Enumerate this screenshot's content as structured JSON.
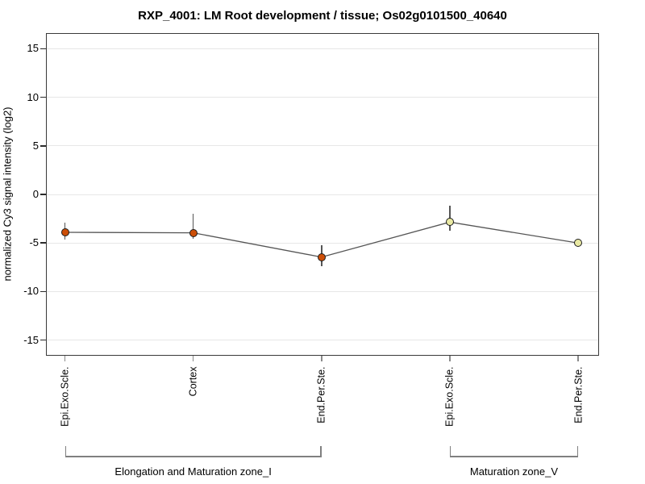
{
  "chart_data": {
    "type": "line",
    "title": "RXP_4001: LM Root development / tissue; Os02g0101500_40640",
    "xlabel": "",
    "ylabel": "normalized Cy3 signal intensity (log2)",
    "ylim": [
      -16.6,
      16.6
    ],
    "yticks": [
      15,
      10,
      5,
      0,
      -5,
      -10,
      -15
    ],
    "grid": true,
    "legend": "none",
    "categories": [
      "Epi.Exo.Scle.",
      "Cortex",
      "End.Per.Ste.",
      "Epi.Exo.Scle.",
      "End.Per.Ste."
    ],
    "points": [
      {
        "category": "Epi.Exo.Scle.",
        "value": -3.9,
        "err_hi": -2.9,
        "err_lo": -4.65,
        "fill": "#cc4e07"
      },
      {
        "category": "Cortex",
        "value": -3.95,
        "err_hi": -2.0,
        "err_lo": -4.6,
        "fill": "#cc4e07"
      },
      {
        "category": "End.Per.Ste.",
        "value": -6.45,
        "err_hi": -5.2,
        "err_lo": -7.4,
        "fill": "#cc4e07"
      },
      {
        "category": "Epi.Exo.Scle.",
        "value": -2.85,
        "err_hi": -1.2,
        "err_lo": -3.75,
        "fill": "#e9e9a3"
      },
      {
        "category": "End.Per.Ste.",
        "value": -5.0,
        "err_hi": -4.8,
        "err_lo": -5.3,
        "fill": "#e9e9a3"
      }
    ],
    "groups": [
      {
        "label": "Elongation and Maturation zone_I",
        "from": 0,
        "to": 2
      },
      {
        "label": "Maturation zone_V",
        "from": 3,
        "to": 4
      }
    ],
    "colors": {
      "marker_stroke": "#1c1c1c",
      "series_line": "#555555",
      "error_bar": "#555555",
      "gridline": "#e7e7e7",
      "frame": "#3a3a3a",
      "ytick": "#2b2b2b",
      "xtick": "#8a8a8a",
      "bracket": "#808080",
      "background": "#ffffff"
    }
  }
}
